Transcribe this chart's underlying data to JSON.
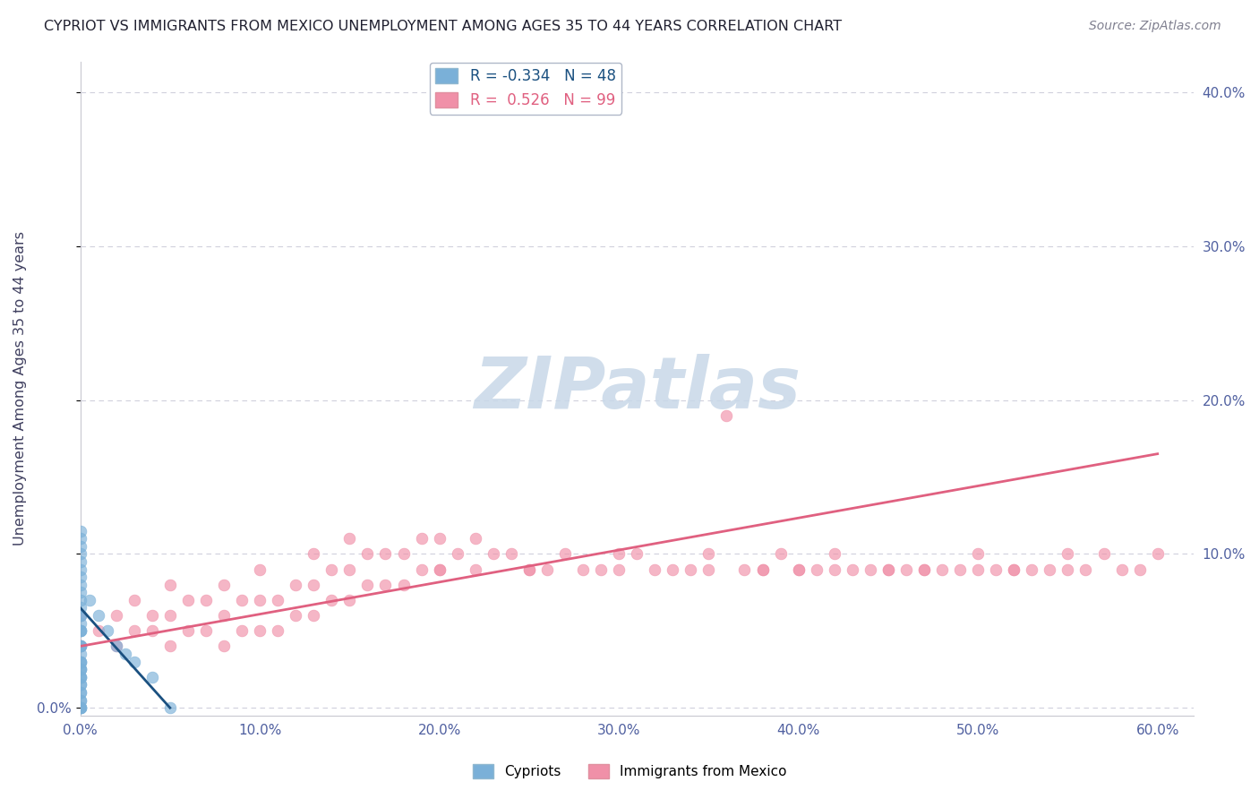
{
  "title": "CYPRIOT VS IMMIGRANTS FROM MEXICO UNEMPLOYMENT AMONG AGES 35 TO 44 YEARS CORRELATION CHART",
  "source": "Source: ZipAtlas.com",
  "ylabel": "Unemployment Among Ages 35 to 44 years",
  "xlim": [
    0.0,
    0.62
  ],
  "ylim": [
    -0.005,
    0.42
  ],
  "xtick_positions": [
    0.0,
    0.1,
    0.2,
    0.3,
    0.4,
    0.5,
    0.6
  ],
  "ytick_positions": [
    0.0,
    0.1,
    0.2,
    0.3,
    0.4
  ],
  "ytick_labels_left": [
    "0.0%",
    "",
    "",
    "",
    ""
  ],
  "ytick_labels_right": [
    "",
    "10.0%",
    "20.0%",
    "30.0%",
    "40.0%"
  ],
  "xtick_labels": [
    "0.0%",
    "10.0%",
    "20.0%",
    "30.0%",
    "40.0%",
    "50.0%",
    "60.0%"
  ],
  "cypriot_color": "#7ab0d8",
  "cypriot_edge_color": "#5090c0",
  "mexico_color": "#f090a8",
  "mexico_edge_color": "#e07090",
  "cypriot_line_color": "#1a5080",
  "mexico_line_color": "#e06080",
  "watermark": "ZIPatlas",
  "watermark_color_zip": "#b0c8e0",
  "watermark_color_atlas": "#d0a0b0",
  "background_color": "#ffffff",
  "grid_color": "#d0d0dc",
  "tick_color": "#5060a0",
  "legend_cypriot_label": "R = -0.334   N = 48",
  "legend_mexico_label": "R =  0.526   N = 99",
  "cypriot_x": [
    0.0,
    0.0,
    0.0,
    0.0,
    0.0,
    0.0,
    0.0,
    0.0,
    0.0,
    0.0,
    0.0,
    0.0,
    0.0,
    0.0,
    0.0,
    0.0,
    0.0,
    0.0,
    0.0,
    0.0,
    0.0,
    0.0,
    0.0,
    0.0,
    0.0,
    0.0,
    0.0,
    0.0,
    0.0,
    0.0,
    0.0,
    0.0,
    0.0,
    0.0,
    0.0,
    0.0,
    0.0,
    0.0,
    0.0,
    0.0,
    0.005,
    0.01,
    0.015,
    0.02,
    0.025,
    0.03,
    0.04,
    0.05
  ],
  "cypriot_y": [
    0.0,
    0.0,
    0.0,
    0.0,
    0.005,
    0.005,
    0.01,
    0.01,
    0.015,
    0.015,
    0.02,
    0.02,
    0.025,
    0.025,
    0.03,
    0.03,
    0.035,
    0.04,
    0.04,
    0.05,
    0.05,
    0.055,
    0.06,
    0.065,
    0.07,
    0.075,
    0.08,
    0.085,
    0.09,
    0.095,
    0.1,
    0.105,
    0.11,
    0.115,
    0.02,
    0.025,
    0.03,
    0.04,
    0.05,
    0.06,
    0.07,
    0.06,
    0.05,
    0.04,
    0.035,
    0.03,
    0.02,
    0.0
  ],
  "mexico_x": [
    0.0,
    0.0,
    0.01,
    0.02,
    0.02,
    0.03,
    0.03,
    0.04,
    0.04,
    0.05,
    0.05,
    0.05,
    0.06,
    0.06,
    0.07,
    0.07,
    0.08,
    0.08,
    0.08,
    0.09,
    0.09,
    0.1,
    0.1,
    0.1,
    0.11,
    0.11,
    0.12,
    0.12,
    0.13,
    0.13,
    0.13,
    0.14,
    0.14,
    0.15,
    0.15,
    0.15,
    0.16,
    0.16,
    0.17,
    0.17,
    0.18,
    0.18,
    0.19,
    0.19,
    0.2,
    0.2,
    0.21,
    0.22,
    0.22,
    0.23,
    0.24,
    0.25,
    0.26,
    0.27,
    0.28,
    0.29,
    0.3,
    0.31,
    0.32,
    0.33,
    0.34,
    0.35,
    0.36,
    0.37,
    0.38,
    0.39,
    0.4,
    0.41,
    0.42,
    0.43,
    0.44,
    0.45,
    0.46,
    0.47,
    0.48,
    0.49,
    0.5,
    0.51,
    0.52,
    0.53,
    0.54,
    0.55,
    0.56,
    0.57,
    0.58,
    0.59,
    0.6,
    0.5,
    0.55,
    0.42,
    0.38,
    0.47,
    0.52,
    0.45,
    0.4,
    0.35,
    0.3,
    0.25,
    0.2
  ],
  "mexico_y": [
    0.04,
    0.06,
    0.05,
    0.04,
    0.06,
    0.05,
    0.07,
    0.05,
    0.06,
    0.04,
    0.06,
    0.08,
    0.05,
    0.07,
    0.05,
    0.07,
    0.04,
    0.06,
    0.08,
    0.05,
    0.07,
    0.05,
    0.07,
    0.09,
    0.05,
    0.07,
    0.06,
    0.08,
    0.06,
    0.08,
    0.1,
    0.07,
    0.09,
    0.07,
    0.09,
    0.11,
    0.08,
    0.1,
    0.08,
    0.1,
    0.08,
    0.1,
    0.09,
    0.11,
    0.09,
    0.11,
    0.1,
    0.09,
    0.11,
    0.1,
    0.1,
    0.09,
    0.09,
    0.1,
    0.09,
    0.09,
    0.1,
    0.1,
    0.09,
    0.09,
    0.09,
    0.1,
    0.19,
    0.09,
    0.09,
    0.1,
    0.09,
    0.09,
    0.09,
    0.09,
    0.09,
    0.09,
    0.09,
    0.09,
    0.09,
    0.09,
    0.09,
    0.09,
    0.09,
    0.09,
    0.09,
    0.09,
    0.09,
    0.1,
    0.09,
    0.09,
    0.1,
    0.1,
    0.1,
    0.1,
    0.09,
    0.09,
    0.09,
    0.09,
    0.09,
    0.09,
    0.09,
    0.09,
    0.09
  ],
  "cypriot_trend_x": [
    0.0,
    0.05
  ],
  "cypriot_trend_y": [
    0.065,
    0.0
  ],
  "mexico_trend_x": [
    0.0,
    0.6
  ],
  "mexico_trend_y": [
    0.04,
    0.165
  ]
}
